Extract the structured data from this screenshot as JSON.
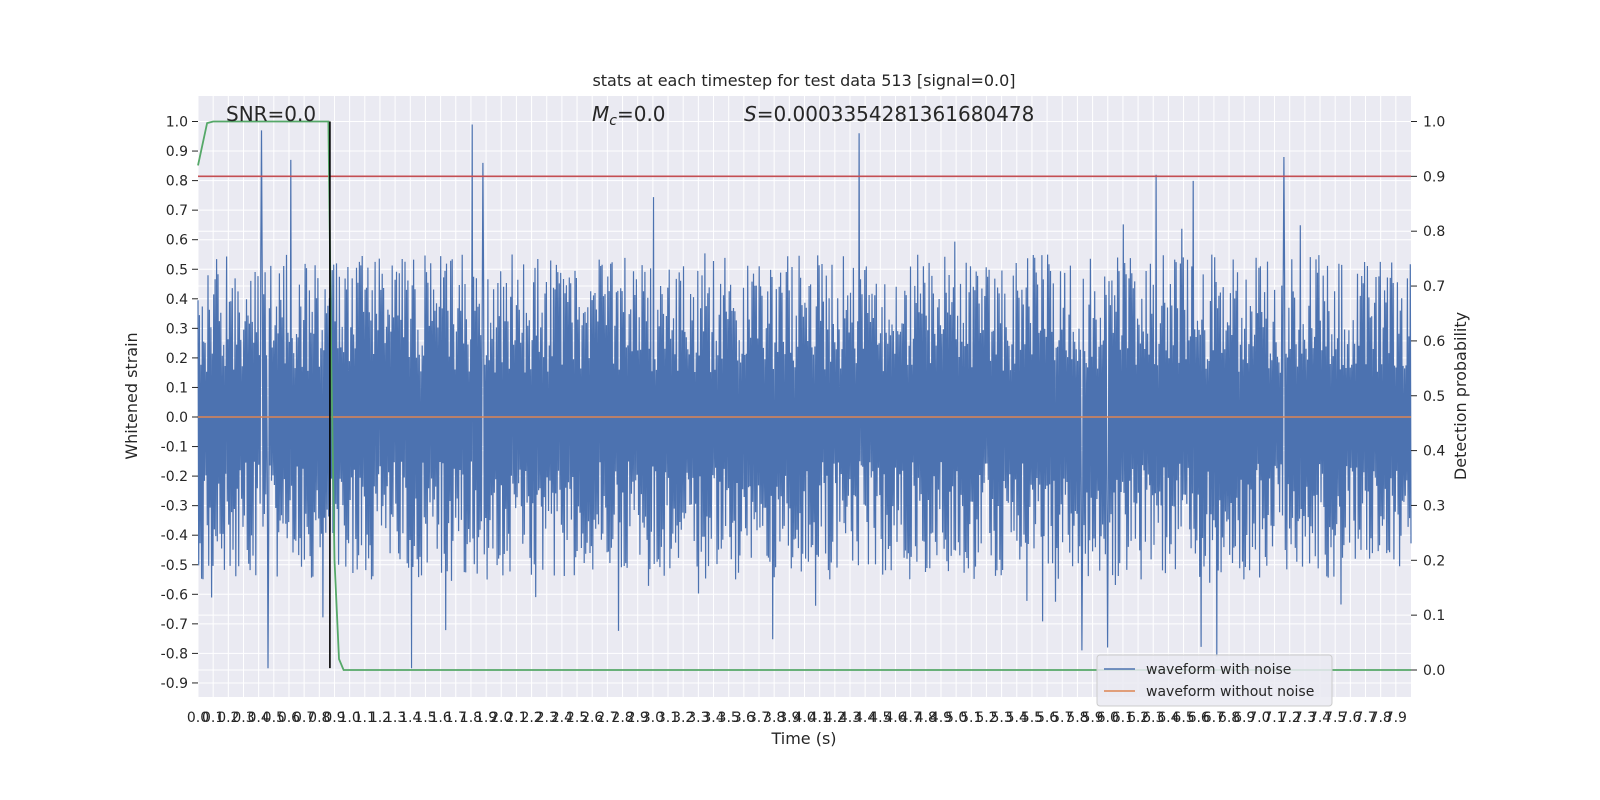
{
  "chart_data": {
    "type": "line",
    "title": "stats at each timestep for test data 513 [signal=0.0]",
    "xlabel": "Time (s)",
    "ylabel": "Whitened strain",
    "y2label": "Detection probability",
    "xlim": [
      0.0,
      8.0
    ],
    "ylim": [
      -0.95,
      1.08
    ],
    "y2lim": [
      -0.05,
      1.08
    ],
    "x_ticks": [
      "0.0",
      "0.1",
      "0.2",
      "0.3",
      "0.4",
      "0.5",
      "0.6",
      "0.7",
      "0.8",
      "0.9",
      "1.0",
      "1.1",
      "1.2",
      "1.3",
      "1.4",
      "1.5",
      "1.6",
      "1.7",
      "1.8",
      "1.9",
      "2.0",
      "2.1",
      "2.2",
      "2.3",
      "2.4",
      "2.5",
      "2.6",
      "2.7",
      "2.8",
      "2.9",
      "3.0",
      "3.1",
      "3.2",
      "3.3",
      "3.4",
      "3.5",
      "3.6",
      "3.7",
      "3.8",
      "3.9",
      "4.0",
      "4.1",
      "4.2",
      "4.3",
      "4.4",
      "4.5",
      "4.6",
      "4.7",
      "4.8",
      "4.9",
      "5.0",
      "5.1",
      "5.2",
      "5.3",
      "5.4",
      "5.5",
      "5.6",
      "5.7",
      "5.8",
      "5.9",
      "6.0",
      "6.1",
      "6.2",
      "6.3",
      "6.4",
      "6.5",
      "6.6",
      "6.7",
      "6.8",
      "6.9",
      "7.0",
      "7.1",
      "7.2",
      "7.3",
      "7.4",
      "7.5",
      "7.6",
      "7.7",
      "7.8",
      "7.9"
    ],
    "y_ticks": [
      "1.0",
      "0.9",
      "0.8",
      "0.7",
      "0.6",
      "0.5",
      "0.4",
      "0.3",
      "0.2",
      "0.1",
      "0.0",
      "-0.1",
      "-0.2",
      "-0.3",
      "-0.4",
      "-0.5",
      "-0.6",
      "-0.7",
      "-0.8",
      "-0.9"
    ],
    "y2_ticks": [
      "1.0",
      "0.9",
      "0.8",
      "0.7",
      "0.6",
      "0.5",
      "0.4",
      "0.3",
      "0.2",
      "0.1",
      "0.0"
    ],
    "annotations": {
      "snr": "SNR=0.0",
      "mc_symbol": "M",
      "mc_sub": "c",
      "mc_value": "=0.0",
      "s_symbol": "S",
      "s_value": "=0.0003354281361680478"
    },
    "series": [
      {
        "name": "waveform with noise",
        "color": "#4c72b0",
        "envelope": {
          "typical_upper": 0.35,
          "typical_lower": -0.35,
          "spread": 0.2
        },
        "spikes": [
          {
            "x": 0.42,
            "y": 0.97
          },
          {
            "x": 0.61,
            "y": 0.87
          },
          {
            "x": 1.81,
            "y": 0.99
          },
          {
            "x": 1.88,
            "y": 0.86
          },
          {
            "x": 4.36,
            "y": 0.96
          },
          {
            "x": 6.32,
            "y": 0.82
          },
          {
            "x": 7.16,
            "y": 0.88
          },
          {
            "x": 0.46,
            "y": -0.85
          },
          {
            "x": 1.41,
            "y": -0.85
          },
          {
            "x": 6.72,
            "y": -0.81
          },
          {
            "x": 6.0,
            "y": -0.78
          },
          {
            "x": 5.83,
            "y": -0.79
          }
        ]
      },
      {
        "name": "waveform without noise",
        "color": "#dd8452",
        "x": [
          0.0,
          8.0
        ],
        "y": [
          0.0,
          0.0
        ]
      },
      {
        "axis": "right",
        "color": "#55a868",
        "x": [
          0.0,
          0.06,
          0.1,
          0.2,
          0.3,
          0.4,
          0.5,
          0.6,
          0.7,
          0.8,
          0.86,
          0.88,
          0.9,
          0.93,
          0.96,
          1.0,
          2.0,
          4.0,
          6.0,
          8.0
        ],
        "y": [
          0.92,
          0.997,
          1.0,
          1.0,
          1.0,
          1.0,
          1.0,
          1.0,
          1.0,
          1.0,
          1.0,
          0.55,
          0.2,
          0.02,
          0.0,
          0.0,
          0.0,
          0.0,
          0.0,
          0.0
        ]
      }
    ],
    "threshold": {
      "axis": "right",
      "value": 0.9,
      "color": "#c44e52"
    },
    "marker_line": {
      "x": 0.87,
      "y_from": -0.85,
      "y_to": 1.0,
      "color": "#000000"
    },
    "legend_placement": "lower-right",
    "grid": true
  }
}
